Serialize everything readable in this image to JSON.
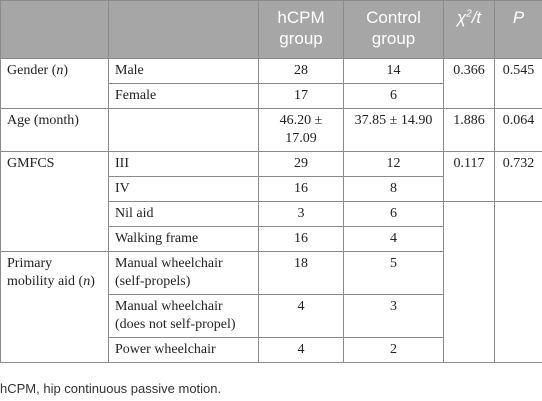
{
  "header": {
    "col1": "",
    "col2": "",
    "col3_line1": "hCPM",
    "col3_line2": "group",
    "col4_line1": "Control",
    "col4_line2": "group",
    "col5_base": "χ",
    "col5_sup": "2",
    "col5_rest": "/t",
    "col6": "P"
  },
  "rows": {
    "gender_label": "Gender (n)",
    "gender_male": "Male",
    "gender_male_hcpm": "28",
    "gender_male_ctrl": "14",
    "gender_chi": "0.366",
    "gender_p": "0.545",
    "gender_female": "Female",
    "gender_female_hcpm": "17",
    "gender_female_ctrl": "6",
    "age_label": "Age (month)",
    "age_hcpm": "46.20 ± 17.09",
    "age_ctrl": "37.85 ± 14.90",
    "age_chi": "1.886",
    "age_p": "0.064",
    "gmfcs_label": "GMFCS",
    "gmfcs_iii": "III",
    "gmfcs_iii_hcpm": "29",
    "gmfcs_iii_ctrl": "12",
    "gmfcs_chi": "0.117",
    "gmfcs_p": "0.732",
    "gmfcs_iv": "IV",
    "gmfcs_iv_hcpm": "16",
    "gmfcs_iv_ctrl": "8",
    "gmfcs_nil": "Nil aid",
    "gmfcs_nil_hcpm": "3",
    "gmfcs_nil_ctrl": "6",
    "gmfcs_walk": "Walking frame",
    "gmfcs_walk_hcpm": "16",
    "gmfcs_walk_ctrl": "4",
    "pma_label": "Primary mobility aid (n)",
    "pma_manual_self": "Manual wheelchair (self-propels)",
    "pma_manual_self_hcpm": "18",
    "pma_manual_self_ctrl": "5",
    "pma_manual_not": "Manual wheelchair (does not self-propel)",
    "pma_manual_not_hcpm": "4",
    "pma_manual_not_ctrl": "3",
    "pma_power": "Power wheelchair",
    "pma_power_hcpm": "4",
    "pma_power_ctrl": "2"
  },
  "footnote": "hCPM, hip continuous passive motion."
}
